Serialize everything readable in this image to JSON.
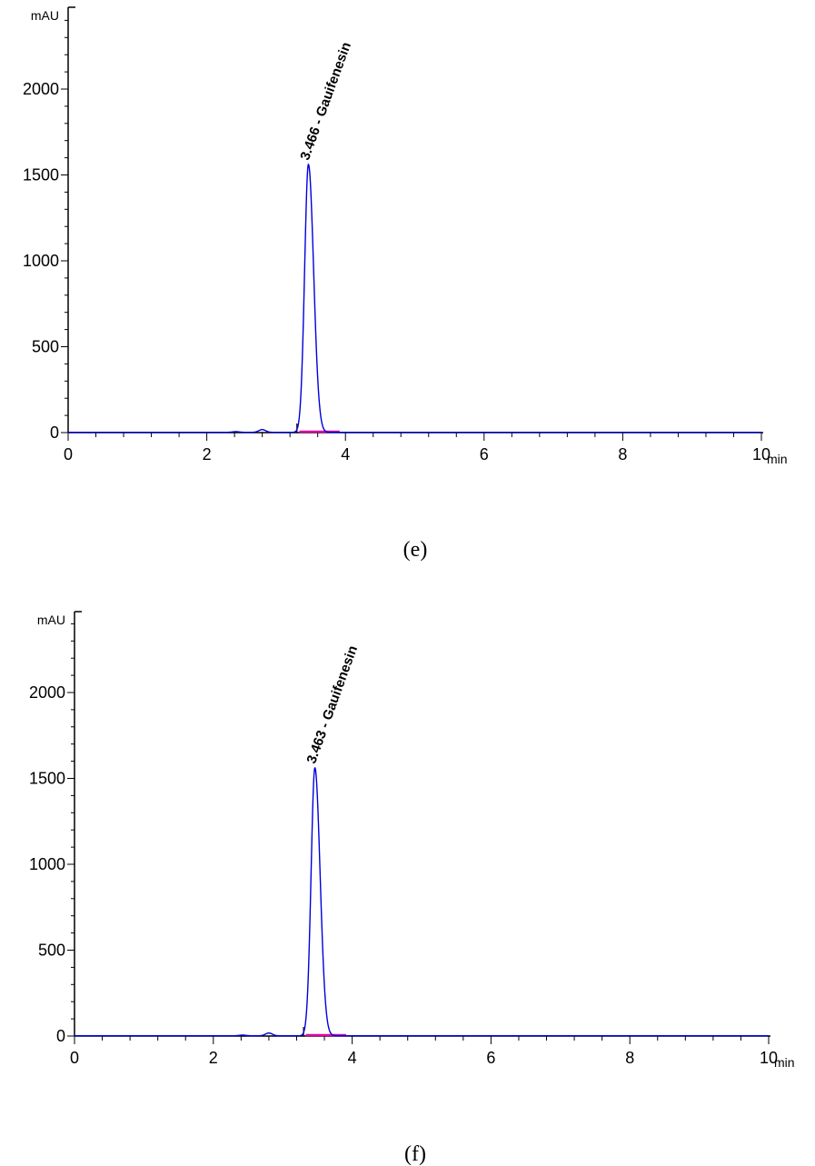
{
  "chart_data": [
    {
      "type": "line",
      "caption": "(e)",
      "ylabel": "mAU",
      "xlabel": "min",
      "xlim": [
        0,
        10
      ],
      "ylim": [
        0,
        2500
      ],
      "x_ticks": [
        "0",
        "2",
        "4",
        "6",
        "8",
        "10"
      ],
      "y_ticks": [
        "0",
        "500",
        "1000",
        "1500",
        "2000"
      ],
      "peak": {
        "rt": 3.466,
        "height": 1560,
        "label": "3.466 - Gauifenesin"
      },
      "minor_peaks": [
        {
          "rt": 2.8,
          "height": 16
        },
        {
          "rt": 2.42,
          "height": 4
        }
      ],
      "integration_marker_x": 3.3,
      "series": [
        {
          "color": "#0000dd"
        }
      ],
      "baseline_color": "#dd00aa"
    },
    {
      "type": "line",
      "caption": "(f)",
      "ylabel": "mAU",
      "xlabel": "min",
      "xlim": [
        0,
        10
      ],
      "ylim": [
        0,
        2500
      ],
      "x_ticks": [
        "0",
        "2",
        "4",
        "6",
        "8",
        "10"
      ],
      "y_ticks": [
        "0",
        "500",
        "1000",
        "1500",
        "2000"
      ],
      "peak": {
        "rt": 3.463,
        "height": 1560,
        "label": "3.463 - Gauifenesin"
      },
      "minor_peaks": [
        {
          "rt": 2.8,
          "height": 16
        },
        {
          "rt": 2.42,
          "height": 4
        }
      ],
      "integration_marker_x": 3.3,
      "series": [
        {
          "color": "#0000dd"
        }
      ],
      "baseline_color": "#dd00aa"
    }
  ]
}
